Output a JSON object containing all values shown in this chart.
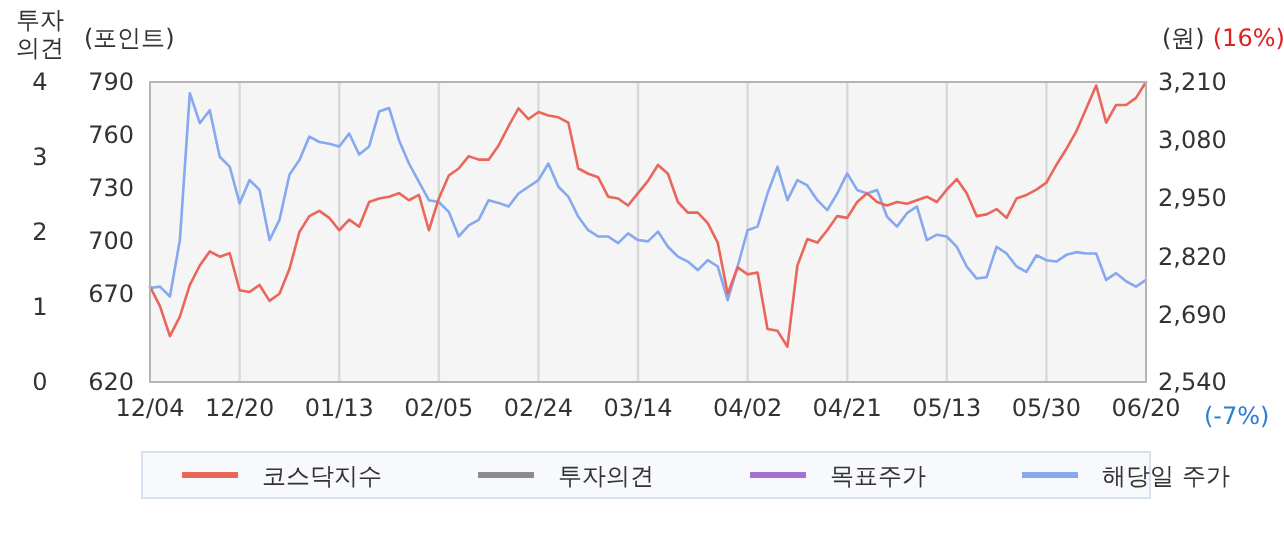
{
  "chart_data": {
    "type": "line",
    "categories": [
      "12/04",
      null,
      null,
      null,
      null,
      null,
      null,
      null,
      null,
      "12/20",
      null,
      null,
      null,
      null,
      null,
      null,
      null,
      null,
      null,
      "01/13",
      null,
      null,
      null,
      null,
      null,
      null,
      null,
      null,
      null,
      "02/05",
      null,
      null,
      null,
      null,
      null,
      null,
      null,
      null,
      null,
      "02/24",
      null,
      null,
      null,
      null,
      null,
      null,
      null,
      null,
      null,
      "03/14",
      null,
      null,
      null,
      null,
      null,
      null,
      null,
      null,
      null,
      null,
      "04/02",
      null,
      null,
      null,
      null,
      null,
      null,
      null,
      null,
      null,
      "04/21",
      null,
      null,
      null,
      null,
      null,
      null,
      null,
      null,
      null,
      "05/13",
      null,
      null,
      null,
      null,
      null,
      null,
      null,
      null,
      null,
      "05/30",
      null,
      null,
      null,
      null,
      null,
      null,
      null,
      null,
      null,
      "06/20"
    ],
    "ylabel": "(포인트)",
    "ylim": [
      620,
      790
    ],
    "yticks": [
      620,
      670,
      700,
      730,
      760,
      790
    ],
    "y2label": "(원)",
    "y2lim": [
      2540,
      3210
    ],
    "y2ticks": [
      {
        "value": 2540,
        "label": "2,540"
      },
      {
        "value": 2690,
        "label": "2,690"
      },
      {
        "value": 2820,
        "label": "2,820"
      },
      {
        "value": 2950,
        "label": "2,950"
      },
      {
        "value": 3080,
        "label": "3,080"
      },
      {
        "value": 3210,
        "label": "3,210"
      }
    ],
    "y3label": "투자의견",
    "y3lim": [
      0,
      4
    ],
    "y3ticks": [
      0,
      1,
      2,
      3,
      4
    ],
    "grid": "x",
    "legend": "bottom",
    "annotations": [
      "(16%)",
      "(-7%)"
    ],
    "series": [
      {
        "name": "코스닥지수",
        "color": "#e8675a",
        "values": [
          674,
          663,
          646,
          657,
          675,
          686,
          694,
          691,
          693,
          672,
          671,
          675,
          666,
          670,
          684,
          705,
          714,
          717,
          713,
          706,
          712,
          708,
          722,
          724,
          725,
          727,
          723,
          726,
          706,
          724,
          737,
          741,
          748,
          746,
          746,
          754,
          765,
          775,
          769,
          773,
          771,
          770,
          767,
          741,
          738,
          736,
          725,
          724,
          720,
          727,
          734,
          743,
          738,
          722,
          716,
          716,
          710,
          699,
          670,
          685,
          681,
          682,
          650,
          649,
          640,
          686,
          701,
          699,
          706,
          714,
          713,
          722,
          727,
          722,
          720,
          722,
          721,
          723,
          725,
          722,
          729,
          735,
          727,
          714,
          715,
          718,
          713,
          724,
          726,
          729,
          733,
          743,
          752,
          762,
          775,
          788,
          767,
          777,
          777,
          781,
          790
        ]
      },
      {
        "name": "투자의견",
        "color": "#8c8c8c",
        "axis": "y3",
        "values": [
          null,
          null,
          null,
          null,
          null,
          null,
          null,
          null,
          null,
          null,
          null,
          null,
          null,
          null,
          null,
          null,
          null,
          null,
          null,
          null,
          null,
          null,
          null,
          null,
          null,
          null,
          null,
          null,
          null,
          null,
          null,
          null,
          null,
          null,
          null,
          null,
          null,
          null,
          null,
          null,
          null,
          null,
          null,
          null,
          null,
          null,
          null,
          null,
          null,
          null,
          null,
          null,
          null,
          null,
          null,
          null,
          null,
          null,
          null,
          null,
          null,
          null,
          null,
          null,
          null,
          null,
          null,
          null,
          null,
          null,
          null,
          null,
          null,
          null,
          null,
          null,
          null,
          null,
          null,
          null,
          null,
          null,
          null,
          null,
          null,
          null,
          null,
          null,
          null,
          null,
          null,
          null,
          null,
          null,
          null,
          null,
          null,
          null,
          null,
          null,
          null
        ]
      },
      {
        "name": "목표주가",
        "color": "#a66fd2",
        "axis": "y2",
        "values": [
          null,
          null,
          null,
          null,
          null,
          null,
          null,
          null,
          null,
          null,
          null,
          null,
          null,
          null,
          null,
          null,
          null,
          null,
          null,
          null,
          null,
          null,
          null,
          null,
          null,
          null,
          null,
          null,
          null,
          null,
          null,
          null,
          null,
          null,
          null,
          null,
          null,
          null,
          null,
          null,
          null,
          null,
          null,
          null,
          null,
          null,
          null,
          null,
          null,
          null,
          null,
          null,
          null,
          null,
          null,
          null,
          null,
          null,
          null,
          null,
          null,
          null,
          null,
          null,
          null,
          null,
          null,
          null,
          null,
          null,
          null,
          null,
          null,
          null,
          null,
          null,
          null,
          null,
          null,
          null,
          null,
          null,
          null,
          null,
          null,
          null,
          null,
          null,
          null,
          null,
          null,
          null,
          null,
          null,
          null,
          null,
          null,
          null,
          null,
          null,
          null
        ]
      },
      {
        "name": "해당일 주가",
        "color": "#86a8ee",
        "axis": "y2",
        "values": [
          2750,
          2753,
          2731,
          2857,
          3185,
          3118,
          3147,
          3043,
          3021,
          2939,
          2991,
          2969,
          2857,
          2902,
          3003,
          3036,
          3088,
          3076,
          3072,
          3066,
          3095,
          3048,
          3066,
          3144,
          3152,
          3080,
          3028,
          2987,
          2946,
          2942,
          2920,
          2865,
          2890,
          2902,
          2946,
          2940,
          2932,
          2961,
          2976,
          2991,
          3028,
          2976,
          2954,
          2909,
          2879,
          2865,
          2865,
          2850,
          2872,
          2857,
          2854,
          2876,
          2842,
          2820,
          2809,
          2790,
          2812,
          2798,
          2723,
          2798,
          2879,
          2887,
          2961,
          3021,
          2946,
          2991,
          2979,
          2946,
          2924,
          2961,
          3006,
          2969,
          2961,
          2969,
          2909,
          2887,
          2917,
          2932,
          2857,
          2869,
          2865,
          2842,
          2798,
          2771,
          2774,
          2842,
          2827,
          2798,
          2786,
          2823,
          2812,
          2809,
          2824,
          2830,
          2827,
          2827,
          2768,
          2783,
          2765,
          2753,
          2768
        ]
      }
    ]
  }
}
